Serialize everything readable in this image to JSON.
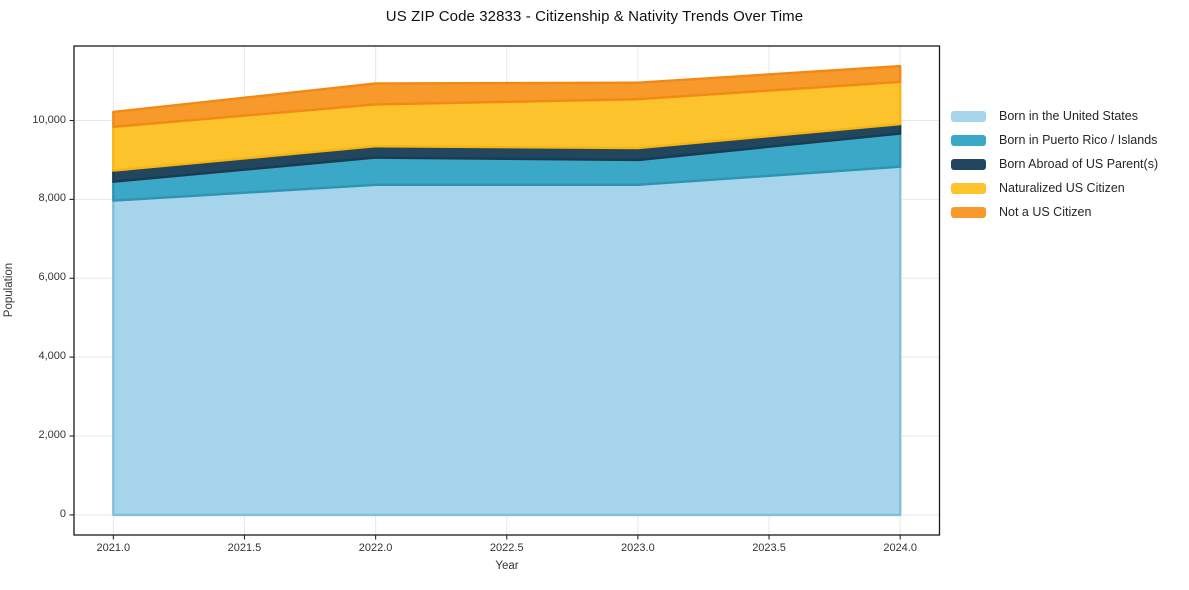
{
  "figure": {
    "title": "US ZIP Code 32833 - Citizenship & Nativity Trends Over Time",
    "background_color": "#ffffff"
  },
  "chart_data": {
    "type": "area",
    "stacked": true,
    "title": "US ZIP Code 32833 - Citizenship & Nativity Trends Over Time",
    "xlabel": "Year",
    "ylabel": "Population",
    "x": [
      2021,
      2022,
      2023,
      2024
    ],
    "series": [
      {
        "name": "Born in the United States",
        "values": [
          7970,
          8370,
          8370,
          8830
        ],
        "fill": "#a5d4eb",
        "edge": "#85bedb"
      },
      {
        "name": "Born in Puerto Rico / Islands",
        "values": [
          480,
          690,
          630,
          840
        ],
        "fill": "#3ba8c7",
        "edge": "#2f94b2"
      },
      {
        "name": "Born Abroad of US Parent(s)",
        "values": [
          280,
          290,
          300,
          240
        ],
        "fill": "#21465e",
        "edge": "#1a3b50"
      },
      {
        "name": "Naturalized US Citizen",
        "values": [
          1110,
          1060,
          1240,
          1070
        ],
        "fill": "#fdc32c",
        "edge": "#f7b512"
      },
      {
        "name": "Not a US Citizen",
        "values": [
          380,
          530,
          420,
          400
        ],
        "fill": "#f8992b",
        "edge": "#f18a14"
      }
    ],
    "cumulative_totals": [
      10220,
      10940,
      10960,
      11380
    ],
    "x_ticks": {
      "values": [
        2021,
        2021.5,
        2022,
        2022.5,
        2023,
        2023.5,
        2024
      ],
      "labels": [
        "2021.0",
        "2021.5",
        "2022.0",
        "2022.5",
        "2023.0",
        "2023.5",
        "2024.0"
      ]
    },
    "y_ticks": {
      "values": [
        0,
        2000,
        4000,
        6000,
        8000,
        10000
      ],
      "labels": [
        "0",
        "2,000",
        "4,000",
        "6,000",
        "8,000",
        "10,000"
      ]
    },
    "xlim": [
      2020.85,
      2024.15
    ],
    "ylim": [
      -510,
      11890
    ],
    "grid": true,
    "grid_color": "#e7e7e7",
    "spine_color": "#1a1a1a",
    "tick_color": "#262626",
    "legend_position": "right-outside"
  }
}
